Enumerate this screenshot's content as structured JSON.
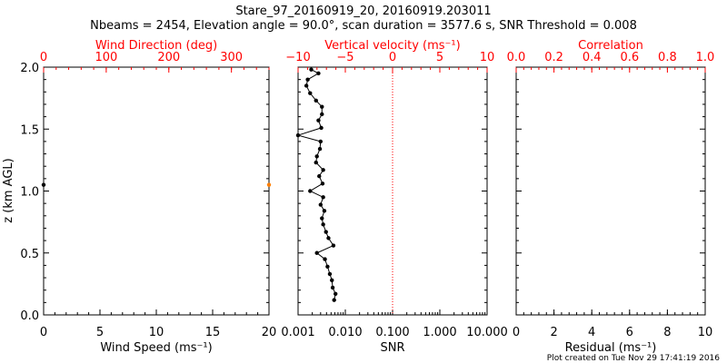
{
  "title_line1": "Stare_97_20160919_20, 20160919.203011",
  "title_line2": "Nbeams = 2454, Elevation angle = 90.0°, scan duration = 3577.6 s, SNR Threshold = 0.008",
  "footer": "Plot created on Tue Nov 29 17:41:19 2016",
  "colors": {
    "axis": "#000000",
    "secondary_axis": "#ff0000",
    "data": "#000000",
    "reference_line": "#ff0000"
  },
  "chart_data": [
    {
      "type": "scatter",
      "panel": "left",
      "xlabel": "Wind Speed (ms⁻¹)",
      "x2label": "Wind Direction (deg)",
      "ylabel": "z (km AGL)",
      "xlim": [
        0,
        20
      ],
      "x2lim": [
        0,
        360
      ],
      "ylim": [
        0,
        2
      ],
      "x_ticks": [
        "0",
        "5",
        "10",
        "15",
        "20"
      ],
      "x2_ticks": [
        "0",
        "100",
        "200",
        "300"
      ],
      "y_ticks": [
        "0.0",
        "0.5",
        "1.0",
        "1.5",
        "2.0"
      ],
      "series": [
        {
          "axis": "bottom",
          "color": "#000000",
          "points": [
            {
              "x": 0,
              "y": 1.05
            }
          ]
        },
        {
          "axis": "top",
          "color": "#ff7f00",
          "points": [
            {
              "x": 360,
              "y": 1.05
            }
          ]
        }
      ]
    },
    {
      "type": "line",
      "panel": "middle",
      "xlabel": "SNR",
      "x2label": "Vertical velocity (ms⁻¹)",
      "xscale": "log",
      "xlim": [
        0.001,
        10
      ],
      "x2lim": [
        -10,
        10
      ],
      "ylim": [
        0,
        2
      ],
      "x_ticks": [
        "0.001",
        "0.010",
        "0.100",
        "1.000",
        "10.000"
      ],
      "x2_ticks": [
        "−10",
        "−5",
        "0",
        "5",
        "10"
      ],
      "reference_line_x2": 0,
      "series": [
        {
          "axis": "bottom",
          "marker": true,
          "points": [
            {
              "y": 0.12,
              "x": 0.0058
            },
            {
              "y": 0.17,
              "x": 0.0062
            },
            {
              "y": 0.22,
              "x": 0.0054
            },
            {
              "y": 0.28,
              "x": 0.0052
            },
            {
              "y": 0.33,
              "x": 0.0047
            },
            {
              "y": 0.39,
              "x": 0.0042
            },
            {
              "y": 0.45,
              "x": 0.0037
            },
            {
              "y": 0.5,
              "x": 0.0025
            },
            {
              "y": 0.56,
              "x": 0.0056
            },
            {
              "y": 0.62,
              "x": 0.0044
            },
            {
              "y": 0.67,
              "x": 0.0039
            },
            {
              "y": 0.73,
              "x": 0.0034
            },
            {
              "y": 0.78,
              "x": 0.0032
            },
            {
              "y": 0.84,
              "x": 0.0036
            },
            {
              "y": 0.89,
              "x": 0.003
            },
            {
              "y": 0.95,
              "x": 0.0034
            },
            {
              "y": 1.0,
              "x": 0.0018
            },
            {
              "y": 1.06,
              "x": 0.0033
            },
            {
              "y": 1.12,
              "x": 0.0028
            },
            {
              "y": 1.17,
              "x": 0.0034
            },
            {
              "y": 1.23,
              "x": 0.0024
            },
            {
              "y": 1.28,
              "x": 0.0025
            },
            {
              "y": 1.34,
              "x": 0.0029
            },
            {
              "y": 1.4,
              "x": 0.003
            },
            {
              "y": 1.45,
              "x": 0.001
            },
            {
              "y": 1.51,
              "x": 0.0031
            },
            {
              "y": 1.57,
              "x": 0.0027
            },
            {
              "y": 1.62,
              "x": 0.0032
            },
            {
              "y": 1.68,
              "x": 0.0032
            },
            {
              "y": 1.73,
              "x": 0.0024
            },
            {
              "y": 1.79,
              "x": 0.0018
            },
            {
              "y": 1.85,
              "x": 0.0015
            },
            {
              "y": 1.9,
              "x": 0.0016
            },
            {
              "y": 1.95,
              "x": 0.0027
            },
            {
              "y": 1.98,
              "x": 0.0019
            }
          ]
        }
      ]
    },
    {
      "type": "scatter",
      "panel": "right",
      "xlabel": "Residual (ms⁻¹)",
      "x2label": "Correlation",
      "xlim": [
        0,
        10
      ],
      "x2lim": [
        0,
        1
      ],
      "ylim": [
        0,
        2
      ],
      "x_ticks": [
        "0",
        "2",
        "4",
        "6",
        "8",
        "10"
      ],
      "x2_ticks": [
        "0.0",
        "0.2",
        "0.4",
        "0.6",
        "0.8",
        "1.0"
      ],
      "series": []
    }
  ]
}
